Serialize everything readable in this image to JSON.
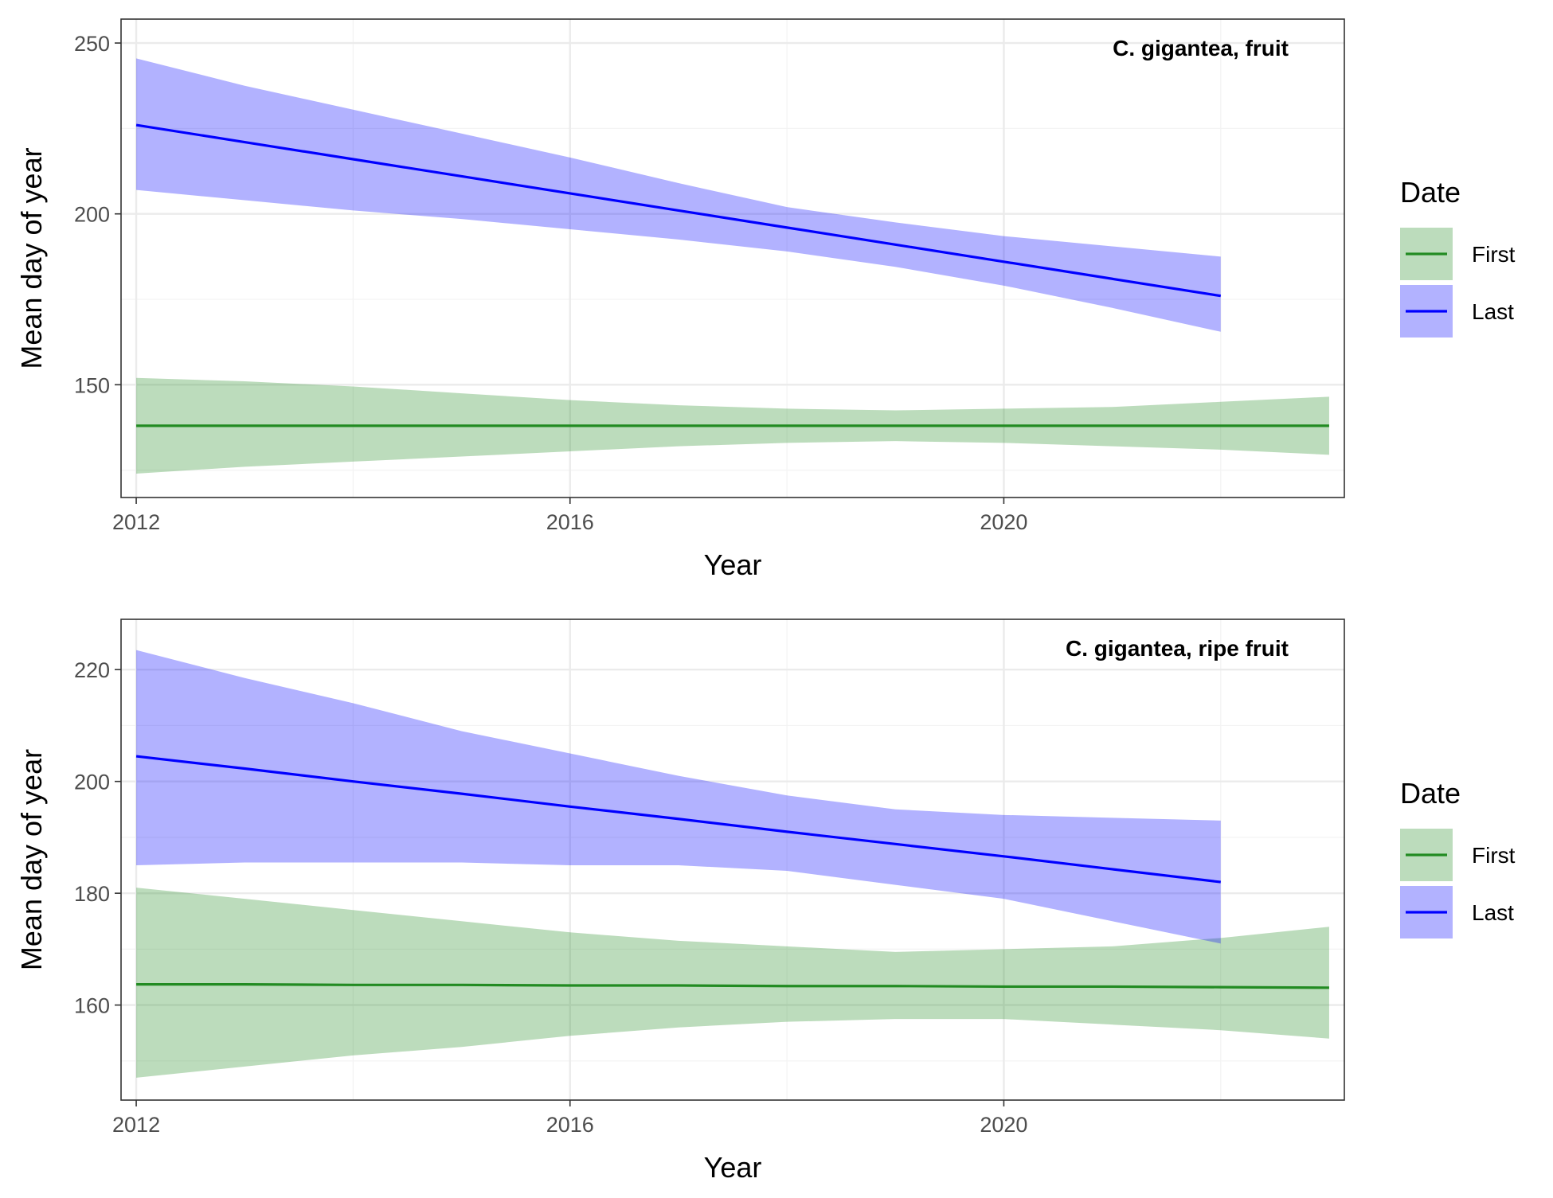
{
  "colors": {
    "first_line": "#228B22",
    "first_band": "#228B22",
    "last_line": "#0000FF",
    "last_band": "#0000FF",
    "grid_major": "#EBEBEB",
    "grid_minor": "#F3F3F3",
    "panel_border": "#333333"
  },
  "chart_data": [
    {
      "type": "line",
      "title": "C. gigantea, fruit",
      "xlabel": "Year",
      "ylabel": "Mean day of year",
      "xlim": [
        2011.86,
        2023.14
      ],
      "ylim": [
        117,
        257
      ],
      "x_ticks": [
        2012,
        2016,
        2020
      ],
      "y_ticks": [
        150,
        200,
        250
      ],
      "grid": true,
      "legend": {
        "title": "Date",
        "position": "right",
        "entries": [
          "First",
          "Last"
        ]
      },
      "series": [
        {
          "name": "First",
          "color": "#228B22",
          "x": [
            2012,
            2013,
            2014,
            2015,
            2016,
            2017,
            2018,
            2019,
            2020,
            2021,
            2022,
            2023
          ],
          "y": [
            138,
            138,
            138,
            138,
            138,
            138,
            138,
            138,
            138,
            138,
            138,
            138
          ],
          "lower": [
            124,
            126,
            127.5,
            129,
            130.5,
            132,
            133,
            133.5,
            133,
            132,
            131,
            129.5
          ],
          "upper": [
            152,
            151,
            149.5,
            147.5,
            145.5,
            144,
            143,
            142.5,
            143,
            143.5,
            145,
            146.5
          ]
        },
        {
          "name": "Last",
          "color": "#0000FF",
          "x": [
            2012,
            2013,
            2014,
            2015,
            2016,
            2017,
            2018,
            2019,
            2020,
            2021,
            2022
          ],
          "y": [
            226,
            221,
            216,
            211,
            206,
            201,
            196,
            191,
            186,
            181,
            176
          ],
          "lower": [
            207,
            204,
            201,
            198.5,
            195.5,
            192.5,
            189,
            184.5,
            179,
            172.5,
            165.5
          ],
          "upper": [
            245.5,
            237.5,
            230.5,
            223.5,
            216.5,
            209,
            202,
            197.5,
            193.5,
            190.5,
            187.5
          ]
        }
      ]
    },
    {
      "type": "line",
      "title": "C. gigantea, ripe fruit",
      "xlabel": "Year",
      "ylabel": "Mean day of year",
      "xlim": [
        2011.86,
        2023.14
      ],
      "ylim": [
        143,
        229
      ],
      "x_ticks": [
        2012,
        2016,
        2020
      ],
      "y_ticks": [
        160,
        180,
        200,
        220
      ],
      "grid": true,
      "legend": {
        "title": "Date",
        "position": "right",
        "entries": [
          "First",
          "Last"
        ]
      },
      "series": [
        {
          "name": "First",
          "color": "#228B22",
          "x": [
            2012,
            2013,
            2014,
            2015,
            2016,
            2017,
            2018,
            2019,
            2020,
            2021,
            2022,
            2023
          ],
          "y": [
            163.7,
            163.7,
            163.6,
            163.6,
            163.5,
            163.5,
            163.4,
            163.4,
            163.3,
            163.3,
            163.2,
            163.1
          ],
          "lower": [
            147,
            149,
            151,
            152.5,
            154.5,
            156,
            157,
            157.5,
            157.5,
            156.5,
            155.5,
            154
          ],
          "upper": [
            181,
            179,
            177,
            175,
            173,
            171.5,
            170.5,
            169.5,
            170,
            170.5,
            172,
            174
          ]
        },
        {
          "name": "Last",
          "color": "#0000FF",
          "x": [
            2012,
            2013,
            2014,
            2015,
            2016,
            2017,
            2018,
            2019,
            2020,
            2021,
            2022
          ],
          "y": [
            204.5,
            202.3,
            200,
            197.8,
            195.5,
            193.3,
            191,
            188.8,
            186.6,
            184.3,
            182
          ],
          "lower": [
            185,
            185.5,
            185.5,
            185.5,
            185,
            185,
            184,
            181.5,
            179,
            175,
            171
          ],
          "upper": [
            223.5,
            218.5,
            214,
            209,
            205,
            201,
            197.5,
            195,
            194,
            193.5,
            193
          ]
        }
      ]
    }
  ]
}
